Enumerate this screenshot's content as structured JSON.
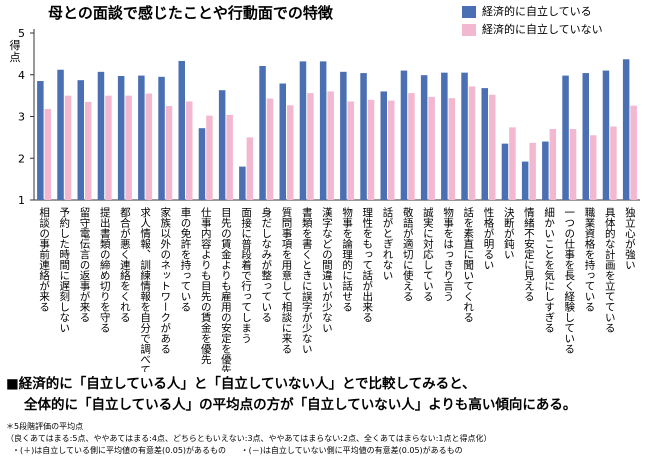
{
  "chart_data": {
    "type": "bar",
    "title": "母との面談で感じたことや行動面での特徴",
    "ylabel": "得点",
    "ylim": [
      1,
      5
    ],
    "yticks": [
      1,
      2,
      3,
      4,
      5
    ],
    "grid": false,
    "legend_position": "top-right",
    "categories": [
      "相談の事前連絡が来る",
      "予約した時間に遅刻しない",
      "留守電伝言の返事が来る",
      "提出書類の締め切りを守る",
      "都合が悪く連絡をくれる",
      "求人情報、訓練情報を自分で調べている",
      "家族以外のネットワークがある",
      "車の免許を持っている",
      "仕事内容よりも目先の賃金を優先",
      "目先の賃金よりも雇用の安定を優先",
      "面接に普段着で行ってしまう",
      "身だしなみが整っている",
      "質問事項を用意して相談に来る",
      "書類を書くときに誤字が少ない",
      "漢字などの間違いが少ない",
      "物事を論理的に話せる",
      "理性をもって話が出来る",
      "話がとぎれない",
      "敬語が適切に使える",
      "誠実に対応している",
      "物事をはっきり言う",
      "話を素直に聞いてくれる",
      "性格が明るい",
      "決断が鈍い",
      "情緒不安定に見える",
      "細かいことを気にしすぎる",
      "一つの仕事を長く経験している",
      "職業資格を持っている",
      "具体的な計画を立てている",
      "独立心が強い"
    ],
    "series": [
      {
        "name": "経済的に自立している",
        "color": "#4a6fb3",
        "values": [
          3.85,
          4.12,
          3.87,
          4.07,
          3.97,
          3.98,
          3.95,
          4.33,
          2.72,
          3.63,
          1.8,
          4.21,
          3.79,
          4.32,
          4.32,
          4.07,
          4.04,
          3.6,
          4.1,
          3.99,
          4.05,
          4.05,
          3.68,
          2.35,
          1.92,
          2.4,
          3.98,
          4.04,
          4.1,
          4.37
        ]
      },
      {
        "name": "経済的に自立していない",
        "color": "#f2b8cf",
        "values": [
          3.18,
          3.5,
          3.35,
          3.5,
          3.5,
          3.55,
          3.25,
          3.36,
          3.02,
          3.04,
          2.5,
          3.43,
          3.27,
          3.56,
          3.6,
          3.36,
          3.4,
          3.38,
          3.56,
          3.47,
          3.44,
          3.72,
          3.52,
          2.74,
          2.37,
          2.7,
          2.7,
          2.55,
          2.76,
          3.26
        ]
      }
    ]
  },
  "conclusion": {
    "line1": "■経済的に「自立している人」と「自立していない人」とで比較してみると、",
    "line2": "全体的に「自立している人」の平均点の方が「自立していない人」よりも高い傾向にある。"
  },
  "notes": {
    "scale_title": "＊5段階評価の平均点",
    "scale_detail": "（良くあてはまる:5点、ややあてはまる:4点、どちらともいえない:3点、ややあてはまらない:2点、全くあてはまらない:1点と得点化）",
    "sig_plus": "・(＋)は自立している側に平均値の有意差(0.05)があるもの",
    "sig_minus": "・(－)は自立していない側に平均値の有意差(0.05)があるもの"
  }
}
